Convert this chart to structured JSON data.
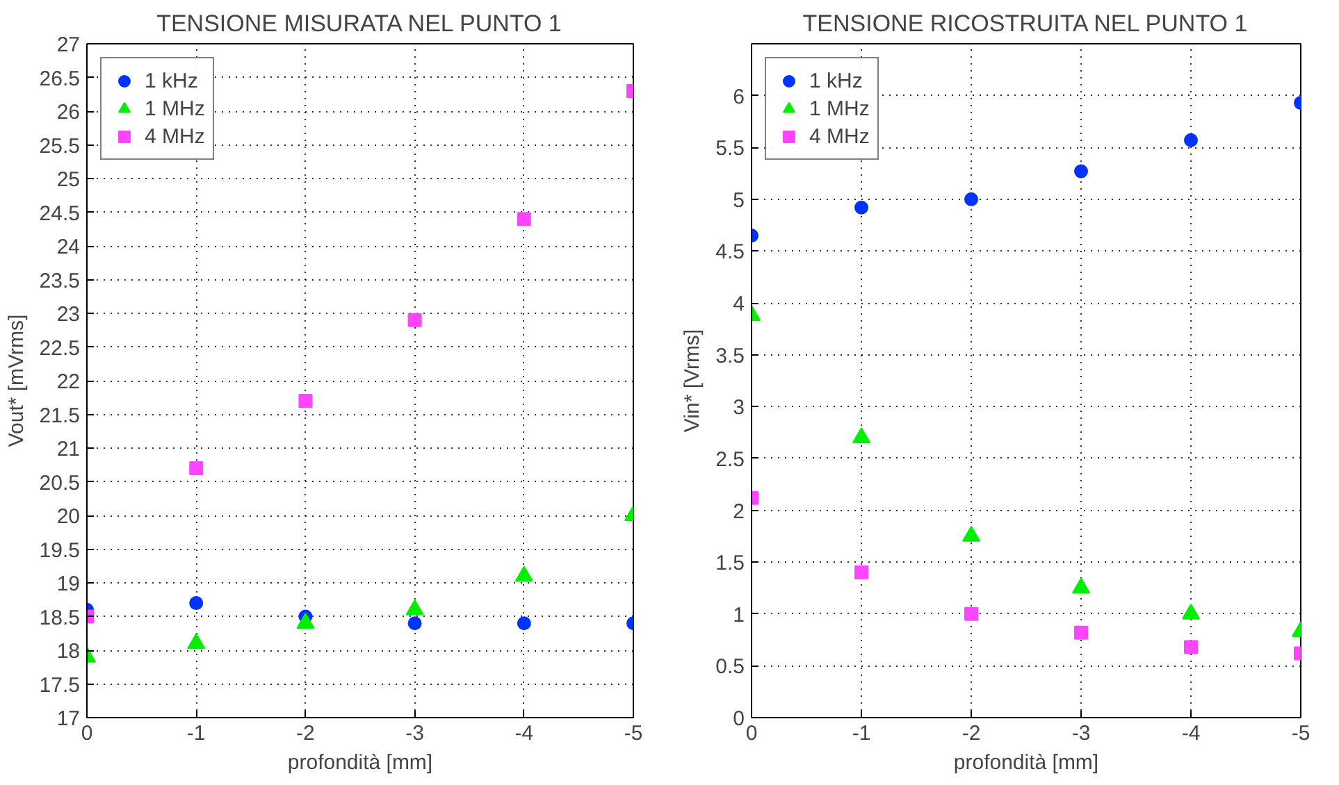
{
  "chart_data": [
    {
      "type": "scatter",
      "title": "TENSIONE MISURATA NEL PUNTO 1",
      "xlabel": "profondità [mm]",
      "ylabel": "Vout* [mVrms]",
      "x": [
        0,
        -1,
        -2,
        -3,
        -4,
        -5
      ],
      "xlim": [
        0,
        -5
      ],
      "xticks": [
        0,
        -1,
        -2,
        -3,
        -4,
        -5
      ],
      "ylim": [
        17,
        27
      ],
      "yticks": [
        17,
        17.5,
        18,
        18.5,
        19,
        19.5,
        20,
        20.5,
        21,
        21.5,
        22,
        22.5,
        23,
        23.5,
        24,
        24.5,
        25,
        25.5,
        26,
        26.5,
        27
      ],
      "grid": true,
      "legend": "top left",
      "series": [
        {
          "name": "1 kHz",
          "color": "#0033ff",
          "marker": "circle",
          "values": [
            18.6,
            18.7,
            18.5,
            18.4,
            18.4,
            18.4
          ]
        },
        {
          "name": "1 MHz",
          "color": "#00ee00",
          "marker": "triangle",
          "values": [
            17.9,
            18.1,
            18.4,
            18.6,
            19.1,
            20.0
          ]
        },
        {
          "name": "4 MHz",
          "color": "#ff44ff",
          "marker": "square",
          "values": [
            18.5,
            20.7,
            21.7,
            22.9,
            24.4,
            26.3
          ]
        }
      ]
    },
    {
      "type": "scatter",
      "title": "TENSIONE RICOSTRUITA NEL PUNTO 1",
      "xlabel": "profondità [mm]",
      "ylabel": "Vin* [Vrms]",
      "x": [
        0,
        -1,
        -2,
        -3,
        -4,
        -5
      ],
      "xlim": [
        0,
        -5
      ],
      "xticks": [
        0,
        -1,
        -2,
        -3,
        -4,
        -5
      ],
      "ylim": [
        0,
        6.5
      ],
      "yticks": [
        0,
        0.5,
        1,
        1.5,
        2,
        2.5,
        3,
        3.5,
        4,
        4.5,
        5,
        5.5,
        6
      ],
      "grid": true,
      "legend": "top left",
      "series": [
        {
          "name": "1 kHz",
          "color": "#0033ff",
          "marker": "circle",
          "values": [
            4.65,
            4.92,
            5.0,
            5.27,
            5.57,
            5.93
          ]
        },
        {
          "name": "1 MHz",
          "color": "#00ee00",
          "marker": "triangle",
          "values": [
            3.88,
            2.7,
            1.75,
            1.25,
            1.0,
            0.83
          ]
        },
        {
          "name": "4 MHz",
          "color": "#ff44ff",
          "marker": "square",
          "values": [
            2.12,
            1.4,
            1.0,
            0.82,
            0.68,
            0.62
          ]
        }
      ]
    }
  ]
}
